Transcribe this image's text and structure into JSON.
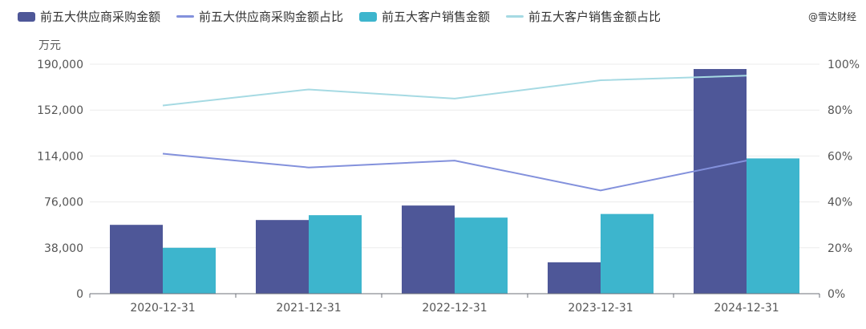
{
  "watermark": "@雪达财经",
  "chart_data": {
    "type": "bar",
    "categories": [
      "2020-12-31",
      "2021-12-31",
      "2022-12-31",
      "2023-12-31",
      "2024-12-31"
    ],
    "y_unit": "万元",
    "ylim": [
      0,
      190000
    ],
    "y_ticks": [
      0,
      38000,
      76000,
      114000,
      152000,
      190000
    ],
    "y_tick_labels": [
      "0",
      "38,000",
      "76,000",
      "114,000",
      "152,000",
      "190,000"
    ],
    "y2lim": [
      0,
      100
    ],
    "y2_ticks": [
      0,
      20,
      40,
      60,
      80,
      100
    ],
    "y2_tick_labels": [
      "0%",
      "20%",
      "40%",
      "60%",
      "80%",
      "100%"
    ],
    "grid": true,
    "legend_position": "top-left",
    "series": [
      {
        "name": "前五大供应商采购金额",
        "type": "bar",
        "axis": "left",
        "color": "#4e5798",
        "values": [
          57000,
          61000,
          73000,
          26000,
          186000
        ]
      },
      {
        "name": "前五大供应商采购金额占比",
        "type": "line",
        "axis": "right",
        "color": "#8391dc",
        "values": [
          61,
          55,
          58,
          45,
          58
        ]
      },
      {
        "name": "前五大客户销售金额",
        "type": "bar",
        "axis": "left",
        "color": "#3db5cd",
        "values": [
          38000,
          65000,
          63000,
          66000,
          112000
        ]
      },
      {
        "name": "前五大客户销售金额占比",
        "type": "line",
        "axis": "right",
        "color": "#a6dae3",
        "values": [
          82,
          89,
          85,
          93,
          95
        ]
      }
    ]
  }
}
